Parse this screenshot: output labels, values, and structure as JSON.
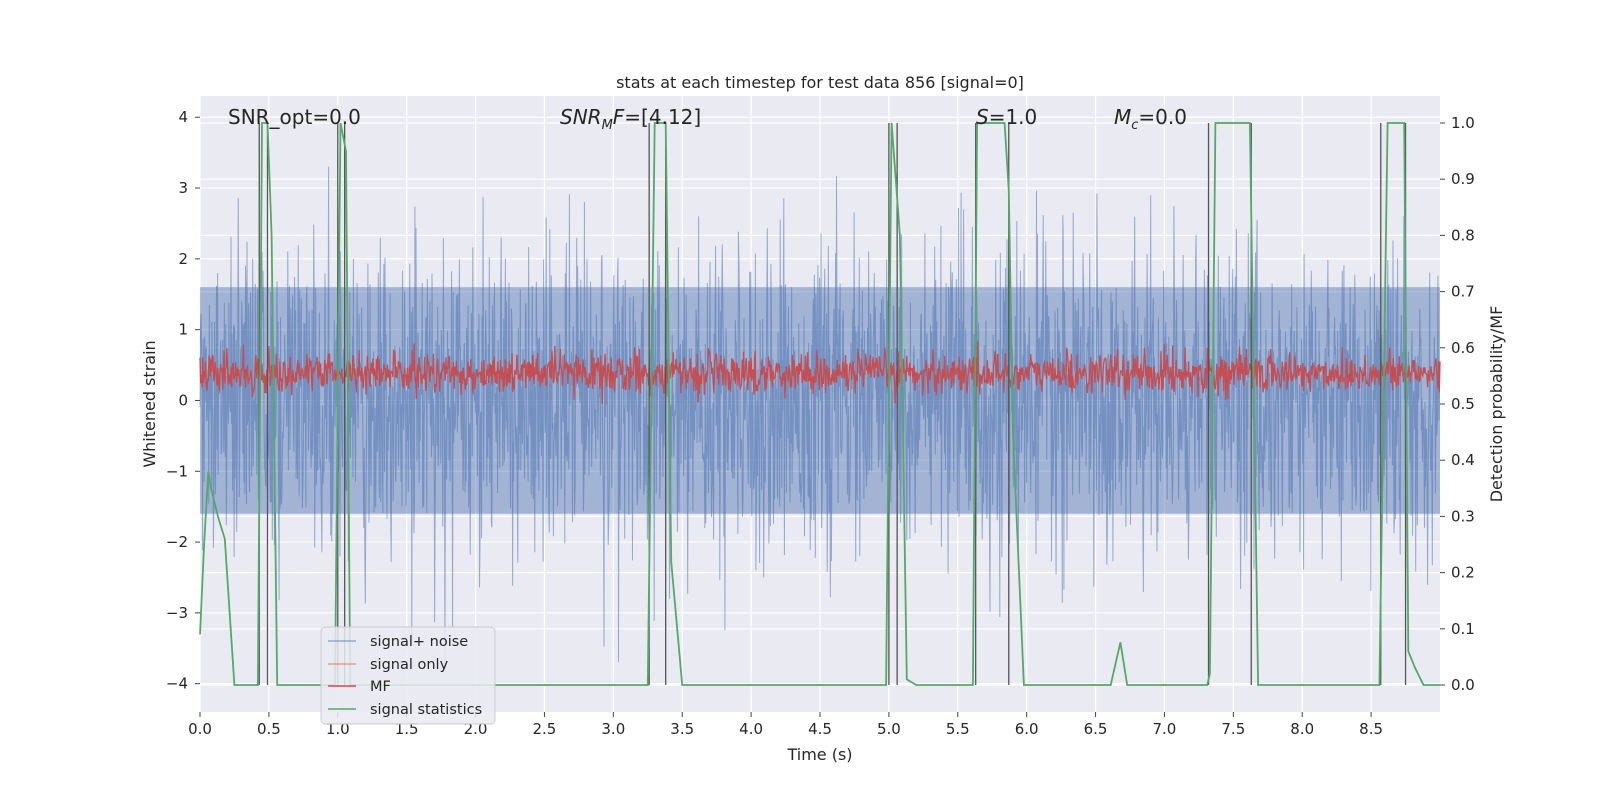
{
  "chart_data": {
    "type": "line",
    "title": "stats at each timestep for test data 856 [signal=0]",
    "xlabel": "Time (s)",
    "ylabel_left": "Whitened strain",
    "ylabel_right": "Detection probability/MF",
    "xlim": [
      0,
      9.0
    ],
    "ylim_left": [
      -4.4,
      4.3
    ],
    "ylim_right": [
      -0.048,
      1.048
    ],
    "x_ticks": [
      "0.0",
      "0.5",
      "1.0",
      "1.5",
      "2.0",
      "2.5",
      "3.0",
      "3.5",
      "4.0",
      "4.5",
      "5.0",
      "5.5",
      "6.0",
      "6.5",
      "7.0",
      "7.5",
      "8.0",
      "8.5"
    ],
    "y_ticks_left": [
      "4",
      "3",
      "2",
      "1",
      "0",
      "−1",
      "−2",
      "−3",
      "−4"
    ],
    "y_ticks_right": [
      "1.0",
      "0.9",
      "0.8",
      "0.7",
      "0.6",
      "0.5",
      "0.4",
      "0.3",
      "0.2",
      "0.1",
      "0.0"
    ],
    "grid": true,
    "legend_placement": "lower-left",
    "annotations": {
      "snr_opt": "SNR_opt=0.0",
      "snr_mf": "=[4.12]",
      "s": "=1.0",
      "mc": "=0.0"
    },
    "series": [
      {
        "name": "signal+ noise",
        "color": "#4c72b0",
        "style": "noise band, approx. Gaussian, std ~1, range about -4 to 4"
      },
      {
        "name": "signal only",
        "color": "#dd8452",
        "values": []
      },
      {
        "name": "MF",
        "color": "#c44e52",
        "axis": "right",
        "style": "noisy trace between about 0.5 and 0.6"
      },
      {
        "name": "signal statistics",
        "color": "#55a868",
        "axis": "right",
        "x": [
          0.0,
          0.03,
          0.06,
          0.08,
          0.13,
          0.18,
          0.25,
          0.42,
          0.45,
          0.49,
          0.52,
          0.56,
          0.98,
          1.02,
          1.06,
          1.09,
          1.15,
          3.25,
          3.3,
          3.38,
          3.42,
          3.5,
          4.98,
          5.02,
          5.08,
          5.13,
          5.2,
          5.61,
          5.64,
          5.68,
          5.84,
          5.87,
          5.9,
          5.98,
          6.61,
          6.68,
          6.73,
          7.31,
          7.33,
          7.37,
          7.62,
          7.65,
          7.68,
          8.56,
          8.59,
          8.62,
          8.74,
          8.77,
          8.82,
          8.88,
          9.0
        ],
        "y": [
          0.09,
          0.25,
          0.38,
          0.35,
          0.3,
          0.26,
          0.0,
          0.0,
          1.0,
          1.0,
          0.8,
          0.0,
          0.0,
          1.0,
          0.95,
          0.0,
          0.0,
          0.0,
          1.0,
          1.0,
          0.22,
          0.0,
          0.0,
          1.0,
          0.8,
          0.01,
          0.0,
          0.0,
          1.0,
          1.0,
          1.0,
          0.88,
          0.45,
          0.0,
          0.0,
          0.076,
          0.0,
          0.0,
          0.02,
          1.0,
          1.0,
          0.5,
          0.0,
          0.0,
          0.5,
          1.0,
          1.0,
          0.06,
          0.03,
          0.0,
          0.0
        ]
      }
    ],
    "vertical_markers_s": [
      0.43,
      0.49,
      1.0,
      1.05,
      3.26,
      3.38,
      5.0,
      5.06,
      5.63,
      5.87,
      7.32,
      7.63,
      8.57,
      8.75
    ]
  }
}
